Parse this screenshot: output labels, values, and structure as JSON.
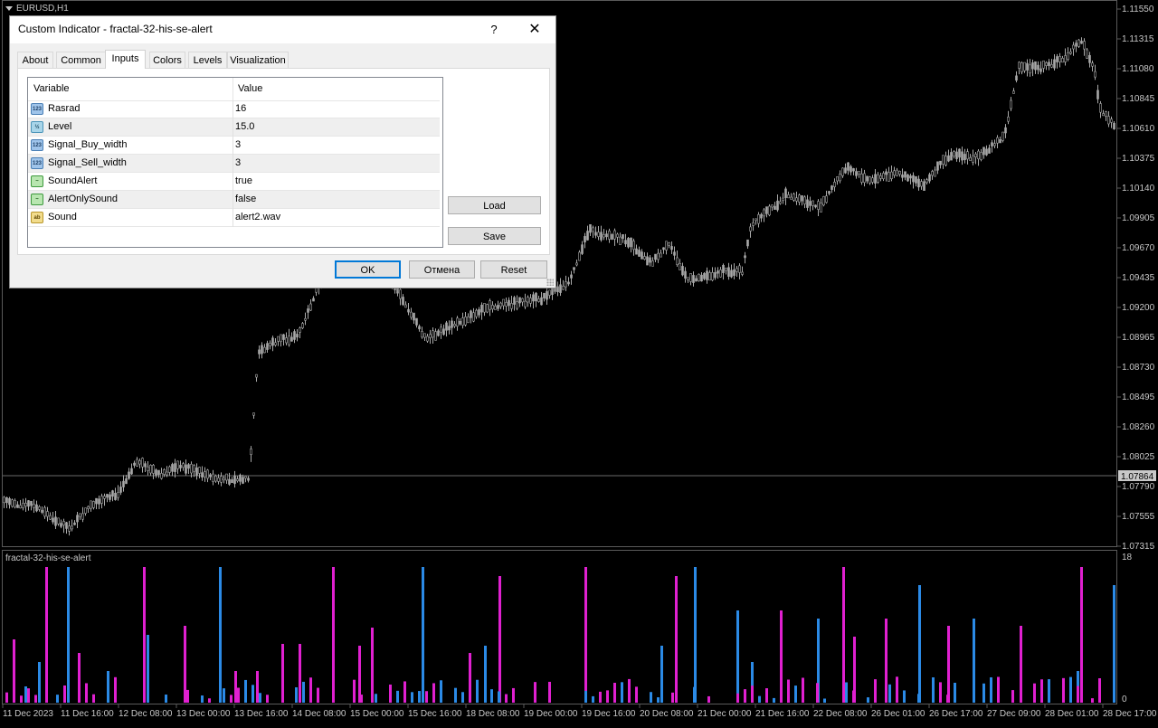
{
  "chart": {
    "symbol_label": "EURUSD,H1",
    "indicator_label": "fractal-32-his-se-alert",
    "price_axis": [
      "1.11550",
      "1.11315",
      "1.11080",
      "1.10845",
      "1.10610",
      "1.10375",
      "1.10140",
      "1.09905",
      "1.09670",
      "1.09435",
      "1.09200",
      "1.08965",
      "1.08730",
      "1.08495",
      "1.08260",
      "1.08025",
      "1.07790",
      "1.07555",
      "1.07315"
    ],
    "current_price": "1.07864",
    "time_axis": [
      "11 Dec 2023",
      "11 Dec 16:00",
      "12 Dec 08:00",
      "13 Dec 00:00",
      "13 Dec 16:00",
      "14 Dec 08:00",
      "15 Dec 00:00",
      "15 Dec 16:00",
      "18 Dec 08:00",
      "19 Dec 00:00",
      "19 Dec 16:00",
      "20 Dec 08:00",
      "21 Dec 00:00",
      "21 Dec 16:00",
      "22 Dec 08:00",
      "26 Dec 01:00",
      "26 Dec 17:00",
      "27 Dec 09:00",
      "28 Dec 01:00",
      "28 Dec 17:00"
    ],
    "indicator_scale_max": "18",
    "indicator_scale_min": "0",
    "colors": {
      "background": "#000000",
      "candle": "#a9a9a9",
      "buy": "#2b8ae6",
      "sell": "#e020d0",
      "grid": "#5a5a5a"
    }
  },
  "dialog": {
    "title": "Custom Indicator - fractal-32-his-se-alert",
    "help_label": "?",
    "close_label": "✕",
    "tabs": [
      {
        "label": "About"
      },
      {
        "label": "Common"
      },
      {
        "label": "Inputs",
        "active": true
      },
      {
        "label": "Colors"
      },
      {
        "label": "Levels"
      },
      {
        "label": "Visualization"
      }
    ],
    "columns": {
      "variable": "Variable",
      "value": "Value"
    },
    "rows": [
      {
        "icon": "123",
        "type": "int",
        "variable": "Rasrad",
        "value": "16"
      },
      {
        "icon": "½",
        "type": "dbl",
        "variable": "Level",
        "value": "15.0"
      },
      {
        "icon": "123",
        "type": "int",
        "variable": "Signal_Buy_width",
        "value": "3"
      },
      {
        "icon": "123",
        "type": "int",
        "variable": "Signal_Sell_width",
        "value": "3"
      },
      {
        "icon": "~",
        "type": "bool",
        "variable": "SoundAlert",
        "value": "true"
      },
      {
        "icon": "~",
        "type": "bool",
        "variable": "AlertOnlySound",
        "value": "false"
      },
      {
        "icon": "ab",
        "type": "str",
        "variable": "Sound",
        "value": "alert2.wav"
      }
    ],
    "load_label": "Load",
    "save_label": "Save",
    "ok_label": "OK",
    "cancel_label": "Отмена",
    "reset_label": "Reset"
  }
}
